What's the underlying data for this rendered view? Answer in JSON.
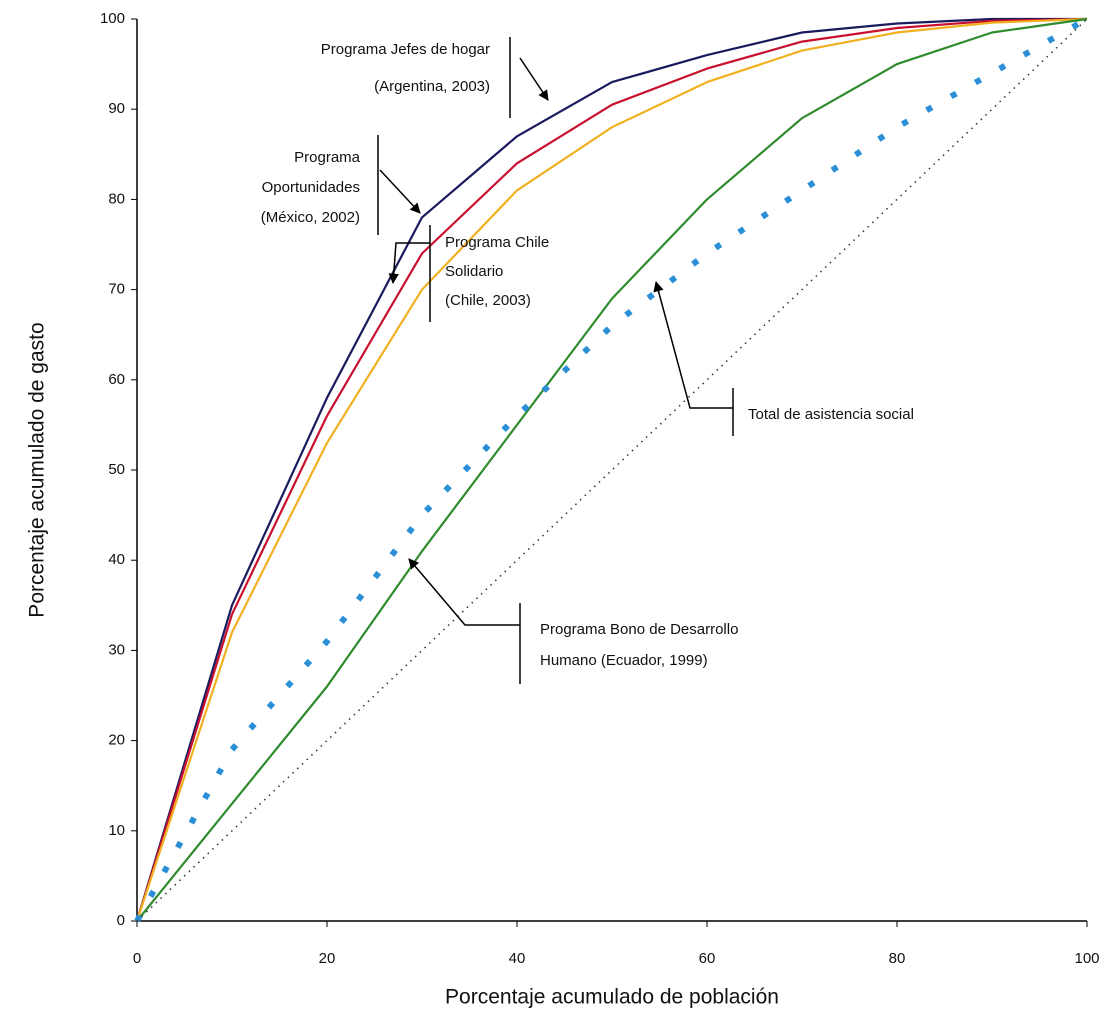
{
  "chart_data": {
    "type": "line",
    "x_label": "Porcentaje acumulado de población",
    "y_label": "Porcentaje acumulado de gasto",
    "x": [
      0,
      10,
      20,
      30,
      40,
      50,
      60,
      70,
      80,
      90,
      100
    ],
    "xlim": [
      0,
      100
    ],
    "ylim": [
      0,
      100
    ],
    "xticks": [
      0,
      20,
      40,
      60,
      80,
      100
    ],
    "yticks": [
      0,
      10,
      20,
      30,
      40,
      50,
      60,
      70,
      80,
      90,
      100
    ],
    "series": [
      {
        "color": "#1a1a5e",
        "style": "solid",
        "values": [
          0,
          35,
          58,
          78,
          87,
          93,
          96,
          98.5,
          99.5,
          100,
          100
        ]
      },
      {
        "color": "#c8102e",
        "style": "solid",
        "values": [
          0,
          34,
          56,
          74,
          84,
          90.5,
          94.5,
          97.5,
          99,
          99.8,
          100
        ]
      },
      {
        "color": "#f0b020",
        "style": "solid",
        "values": [
          0,
          32,
          53,
          70,
          81,
          88,
          93,
          96.5,
          98.5,
          99.6,
          100
        ]
      },
      {
        "color": "#2e8b2e",
        "style": "solid",
        "values": [
          0,
          13,
          26,
          41,
          55,
          69,
          80,
          89,
          95,
          98.5,
          100
        ]
      },
      {
        "color": "#2a8fd6",
        "style": "dashed",
        "values": [
          0,
          19,
          31,
          45,
          56,
          66,
          74,
          81,
          88,
          94,
          100
        ]
      },
      {
        "color": "#333333",
        "style": "dotted",
        "values": [
          0,
          10,
          20,
          30,
          40,
          50,
          60,
          70,
          80,
          90,
          100
        ]
      }
    ],
    "annotations": [
      {
        "lines": [
          "Programa Jefes de hogar",
          "(Argentina, 2003)"
        ]
      },
      {
        "lines": [
          "Programa",
          "Oportunidades",
          "(México, 2002)"
        ]
      },
      {
        "lines": [
          "Programa Chile",
          "Solidario",
          "(Chile, 2003)"
        ]
      },
      {
        "lines": [
          "Total de asistencia social"
        ]
      },
      {
        "lines": [
          "Programa Bono de Desarrollo",
          "Humano (Ecuador, 1999)"
        ]
      }
    ]
  }
}
